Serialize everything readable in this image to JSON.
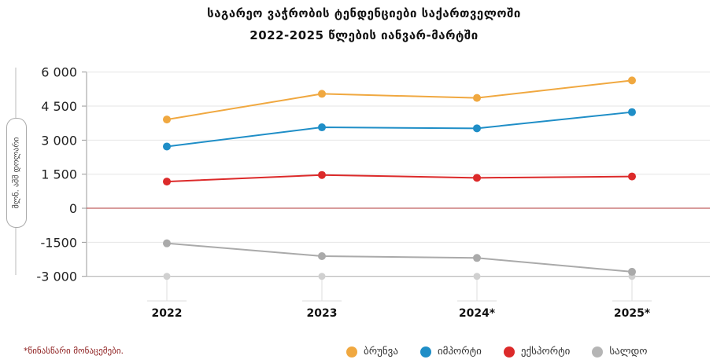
{
  "chart_data": {
    "type": "line",
    "title": "საგარეო ვაჭრობის ტენდენციები საქართველოში",
    "subtitle": "2022-2025 წლების იანვარ-მარტში",
    "ylabel": "მლნ. აშშ დოლარი",
    "xlabel": "",
    "categories": [
      "2022",
      "2023",
      "2024*",
      "2025*"
    ],
    "ylim": [
      -3000,
      6000
    ],
    "yticks": [
      6000,
      4500,
      3000,
      1500,
      0,
      -1500,
      -3000
    ],
    "ytick_labels": [
      "6 000",
      "4 500",
      "3 000",
      "1 500",
      "0",
      "-1500",
      "-3 000"
    ],
    "grid": true,
    "legend_position": "bottom-right",
    "series": [
      {
        "name": "ბრუნვა",
        "color": "#f0a840",
        "values": [
          3910,
          5040,
          4860,
          5630
        ]
      },
      {
        "name": "იმპორტი",
        "color": "#1f8ec7",
        "values": [
          2720,
          3565,
          3520,
          4235
        ]
      },
      {
        "name": "ექსპორტი",
        "color": "#dc2a2a",
        "values": [
          1175,
          1465,
          1340,
          1400
        ]
      },
      {
        "name": "სალდო",
        "color": "#aaaaaa",
        "values": [
          -1545,
          -2110,
          -2190,
          -2800
        ]
      }
    ],
    "footnote": "*წინასწარი მონაცემები."
  }
}
